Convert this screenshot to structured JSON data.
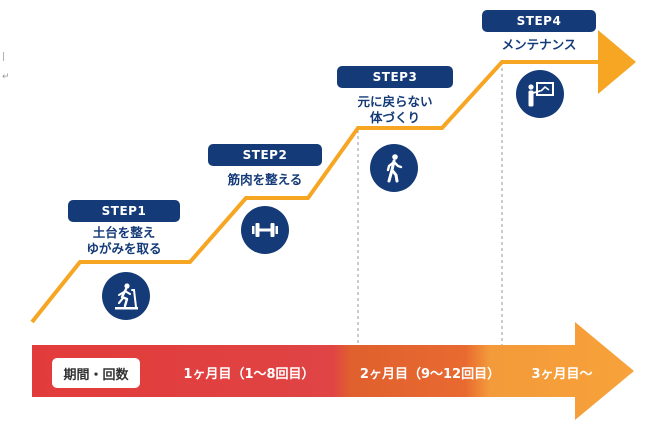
{
  "steps": [
    {
      "label": "STEP1",
      "lines": [
        "土台を整え",
        "ゆがみを取る"
      ],
      "icon": "treadmill-icon"
    },
    {
      "label": "STEP2",
      "lines": [
        "筋肉を整える"
      ],
      "icon": "dumbbell-icon"
    },
    {
      "label": "STEP3",
      "lines": [
        "元に戻らない",
        "体づくり"
      ],
      "icon": "walking-person-icon"
    },
    {
      "label": "STEP4",
      "lines": [
        "メンテナンス"
      ],
      "icon": "presentation-board-icon"
    }
  ],
  "timeline": {
    "period_label": "期間・回数",
    "phases": [
      {
        "label": "1ヶ月目（1～8回目）",
        "color": "#e04040"
      },
      {
        "label": "2ヶ月目（9～12回目）",
        "color": "#e2632e"
      },
      {
        "label": "3ヶ月目～",
        "color": "#f29a38"
      }
    ]
  },
  "colors": {
    "navy": "#143a78",
    "stair_line": "#f6a623",
    "arrow_orange": "#f6a623",
    "dashed": "#9a9a9a"
  }
}
